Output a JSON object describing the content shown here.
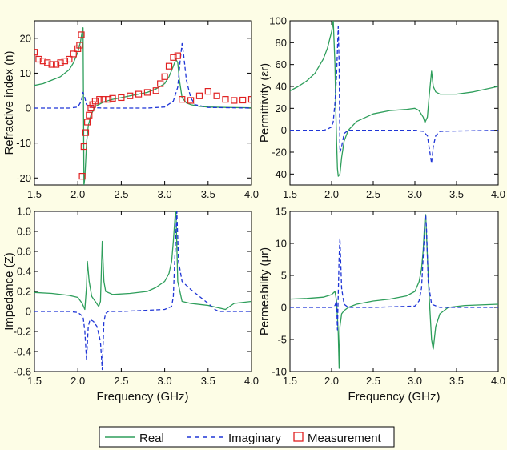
{
  "figure": {
    "xlabel": "Frequency (GHz)",
    "legend": {
      "placement": "bottom-center",
      "entries": [
        {
          "label": "Real",
          "style": "solid",
          "color": "#2e9e5b"
        },
        {
          "label": "Imaginary",
          "style": "dashed",
          "color": "#1f35d6"
        },
        {
          "label": "Measurement",
          "style": "square-marker",
          "color": "#e02020"
        }
      ]
    },
    "colors": {
      "background": "#fdfde6",
      "real": "#2e9e5b",
      "imaginary": "#1f35d6",
      "measurement": "#e02020"
    }
  },
  "chart_data": [
    {
      "type": "line",
      "ylabel": "Refractive index (n)",
      "xlim": [
        1.5,
        4.0
      ],
      "ylim": [
        -22,
        25
      ],
      "xticks": [
        "1.5",
        "2.0",
        "2.5",
        "3.0",
        "3.5",
        "4.0"
      ],
      "yticks": [
        -20,
        -10,
        0,
        10,
        20
      ],
      "grid": false,
      "series": [
        {
          "name": "Real",
          "style": "solid",
          "x": [
            1.5,
            1.6,
            1.7,
            1.8,
            1.9,
            1.95,
            2.0,
            2.03,
            2.05,
            2.06,
            2.07,
            2.08,
            2.09,
            2.1,
            2.12,
            2.15,
            2.2,
            2.3,
            2.4,
            2.5,
            2.6,
            2.7,
            2.8,
            2.9,
            3.0,
            3.05,
            3.1,
            3.13,
            3.15,
            3.17,
            3.2,
            3.25,
            3.3,
            3.4,
            3.5,
            3.7,
            4.0
          ],
          "y": [
            6.5,
            7,
            8,
            9,
            11,
            13,
            16,
            19,
            22,
            23,
            -22,
            -20,
            -15,
            -10,
            -5,
            -2,
            0.5,
            1.8,
            2.5,
            3,
            3.5,
            4,
            4.5,
            5.5,
            7,
            9,
            12,
            14,
            13,
            8,
            3,
            1.5,
            1,
            0.5,
            0.3,
            0.2,
            0.1
          ]
        },
        {
          "name": "Imaginary",
          "style": "dashed",
          "x": [
            1.5,
            1.9,
            2.0,
            2.04,
            2.06,
            2.08,
            2.1,
            2.15,
            2.2,
            2.3,
            2.5,
            2.8,
            3.0,
            3.1,
            3.15,
            3.18,
            3.2,
            3.22,
            3.25,
            3.3,
            3.35,
            3.5,
            4.0
          ],
          "y": [
            0,
            0,
            0.3,
            2,
            4.5,
            3,
            1,
            0.3,
            0.1,
            0,
            0,
            0,
            0.3,
            2,
            6,
            14,
            18.5,
            15,
            8,
            3,
            1,
            0.2,
            0
          ]
        },
        {
          "name": "Measurement",
          "style": "markers",
          "x": [
            1.5,
            1.55,
            1.6,
            1.65,
            1.7,
            1.75,
            1.8,
            1.85,
            1.9,
            1.95,
            2.0,
            2.02,
            2.04,
            2.05,
            2.07,
            2.09,
            2.11,
            2.13,
            2.15,
            2.17,
            2.2,
            2.25,
            2.3,
            2.35,
            2.4,
            2.5,
            2.6,
            2.7,
            2.8,
            2.9,
            2.95,
            3.0,
            3.05,
            3.1,
            3.15,
            3.2,
            3.3,
            3.4,
            3.5,
            3.6,
            3.7,
            3.8,
            3.9,
            4.0
          ],
          "y": [
            16,
            14,
            13.5,
            13,
            12.5,
            12.5,
            13,
            13.5,
            14,
            15.5,
            17,
            18,
            21,
            -19.5,
            -11,
            -7,
            -4,
            -2,
            0,
            1,
            2,
            2.5,
            2.5,
            2.5,
            2.8,
            3,
            3.5,
            4,
            4.5,
            5,
            7,
            9,
            12,
            14.5,
            15,
            2.5,
            2.2,
            3.5,
            4.8,
            3.5,
            2.5,
            2.2,
            2.3,
            2.5
          ]
        }
      ]
    },
    {
      "type": "line",
      "ylabel": "Permittivity (εr)",
      "xlim": [
        1.5,
        4.0
      ],
      "ylim": [
        -50,
        100
      ],
      "xticks": [
        "1.5",
        "2.0",
        "2.5",
        "3.0",
        "3.5",
        "4.0"
      ],
      "yticks": [
        -40,
        -20,
        0,
        20,
        40,
        60,
        80,
        100
      ],
      "grid": false,
      "series": [
        {
          "name": "Real",
          "style": "solid",
          "x": [
            1.5,
            1.6,
            1.7,
            1.8,
            1.9,
            1.95,
            2.0,
            2.02,
            2.04,
            2.05,
            2.06,
            2.07,
            2.08,
            2.1,
            2.12,
            2.15,
            2.2,
            2.3,
            2.5,
            2.7,
            2.9,
            3.0,
            3.05,
            3.1,
            3.12,
            3.15,
            3.17,
            3.2,
            3.22,
            3.25,
            3.3,
            3.5,
            3.7,
            4.0
          ],
          "y": [
            36,
            40,
            45,
            52,
            65,
            75,
            90,
            100,
            60,
            20,
            -10,
            -35,
            -42,
            -40,
            -25,
            -10,
            0,
            8,
            15,
            18,
            19,
            20,
            18,
            12,
            7,
            12,
            30,
            54,
            40,
            35,
            33,
            33,
            35,
            40
          ]
        },
        {
          "name": "Imaginary",
          "style": "dashed",
          "x": [
            1.5,
            1.9,
            1.95,
            2.0,
            2.02,
            2.04,
            2.06,
            2.08,
            2.09,
            2.1,
            2.12,
            2.15,
            2.2,
            2.5,
            3.0,
            3.1,
            3.15,
            3.18,
            3.2,
            3.22,
            3.25,
            3.3,
            4.0
          ],
          "y": [
            0,
            0,
            1,
            3,
            8,
            25,
            50,
            95,
            60,
            -20,
            -15,
            -3,
            0,
            0,
            0,
            -1,
            -5,
            -20,
            -30,
            -15,
            -5,
            -1,
            0
          ]
        }
      ]
    },
    {
      "type": "line",
      "ylabel": "Impedance (Z)",
      "xlim": [
        1.5,
        4.0
      ],
      "ylim": [
        -0.6,
        1.0
      ],
      "xticks": [
        "1.5",
        "2.0",
        "2.5",
        "3.0",
        "3.5",
        "4.0"
      ],
      "yticks": [
        -0.6,
        -0.4,
        -0.2,
        0,
        0.2,
        0.4,
        0.6,
        0.8,
        1.0
      ],
      "ytick_labels": [
        "-0.6",
        "-0.4",
        "-0.2",
        "0",
        "0.2",
        "0.4",
        "0.6",
        "0.8",
        "1.0"
      ],
      "grid": false,
      "series": [
        {
          "name": "Real",
          "style": "solid",
          "x": [
            1.5,
            1.7,
            1.9,
            2.0,
            2.05,
            2.08,
            2.1,
            2.11,
            2.13,
            2.16,
            2.2,
            2.24,
            2.26,
            2.28,
            2.3,
            2.32,
            2.4,
            2.6,
            2.8,
            2.9,
            3.0,
            3.05,
            3.08,
            3.1,
            3.12,
            3.13,
            3.15,
            3.2,
            3.3,
            3.5,
            3.6,
            3.7,
            3.8,
            4.0
          ],
          "y": [
            0.19,
            0.18,
            0.16,
            0.14,
            0.08,
            0.02,
            0.25,
            0.5,
            0.3,
            0.15,
            0.1,
            0.05,
            0.1,
            0.7,
            0.3,
            0.2,
            0.17,
            0.18,
            0.2,
            0.24,
            0.3,
            0.38,
            0.5,
            0.7,
            0.95,
            1.0,
            0.3,
            0.1,
            0.08,
            0.06,
            0.04,
            0.02,
            0.08,
            0.1
          ]
        },
        {
          "name": "Imaginary",
          "style": "dashed",
          "x": [
            1.5,
            1.9,
            2.0,
            2.06,
            2.08,
            2.1,
            2.12,
            2.14,
            2.18,
            2.22,
            2.26,
            2.28,
            2.3,
            2.32,
            2.35,
            2.5,
            3.0,
            3.08,
            3.1,
            3.12,
            3.14,
            3.16,
            3.2,
            3.3,
            3.4,
            3.5,
            3.58,
            3.62,
            3.7,
            4.0
          ],
          "y": [
            0,
            0,
            -0.01,
            -0.05,
            -0.2,
            -0.48,
            -0.15,
            -0.08,
            -0.1,
            -0.15,
            -0.3,
            -0.58,
            -0.1,
            -0.02,
            0,
            0,
            0.02,
            0.05,
            0.15,
            0.6,
            1.0,
            0.5,
            0.3,
            0.22,
            0.15,
            0.08,
            0.02,
            0,
            0,
            0
          ]
        }
      ]
    },
    {
      "type": "line",
      "ylabel": "Permeability (μr)",
      "xlim": [
        1.5,
        4.0
      ],
      "ylim": [
        -10,
        15
      ],
      "xticks": [
        "1.5",
        "2.0",
        "2.5",
        "3.0",
        "3.5",
        "4.0"
      ],
      "yticks": [
        -10,
        -5,
        0,
        5,
        10,
        15
      ],
      "grid": false,
      "series": [
        {
          "name": "Real",
          "style": "solid",
          "x": [
            1.5,
            1.7,
            1.9,
            2.0,
            2.04,
            2.06,
            2.08,
            2.09,
            2.1,
            2.12,
            2.15,
            2.2,
            2.3,
            2.5,
            2.7,
            2.9,
            3.0,
            3.05,
            3.08,
            3.1,
            3.12,
            3.13,
            3.15,
            3.17,
            3.2,
            3.22,
            3.25,
            3.3,
            3.4,
            3.6,
            4.0
          ],
          "y": [
            1.3,
            1.4,
            1.6,
            2,
            2.5,
            1,
            -4,
            -9.5,
            -3,
            -1,
            -0.5,
            0,
            0.5,
            1,
            1.3,
            1.8,
            2.5,
            4,
            6,
            9,
            14,
            14.5,
            8,
            2,
            -5,
            -6.5,
            -3,
            -1,
            0,
            0.3,
            0.5
          ]
        },
        {
          "name": "Imaginary",
          "style": "dashed",
          "x": [
            1.5,
            1.9,
            2.0,
            2.04,
            2.06,
            2.07,
            2.08,
            2.09,
            2.1,
            2.12,
            2.15,
            2.2,
            2.5,
            3.0,
            3.05,
            3.08,
            3.1,
            3.12,
            3.13,
            3.14,
            3.16,
            3.2,
            3.3,
            4.0
          ],
          "y": [
            0,
            0,
            0,
            0.3,
            1,
            -3.5,
            2,
            8,
            10.8,
            3,
            0.5,
            0,
            0,
            0.2,
            1,
            3,
            8,
            13,
            14.5,
            12,
            4,
            0.5,
            0,
            0
          ]
        }
      ]
    }
  ]
}
